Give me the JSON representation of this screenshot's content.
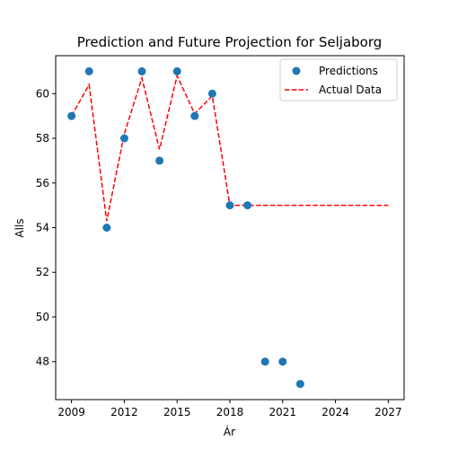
{
  "chart_data": {
    "type": "scatter",
    "title": "Prediction and Future Projection for Seljaborg",
    "xlabel": "Ár",
    "ylabel": "Alls",
    "xlim": [
      2008.1,
      2027.9
    ],
    "ylim": [
      46.3,
      61.7
    ],
    "xticks": [
      2009,
      2012,
      2015,
      2018,
      2021,
      2024,
      2027
    ],
    "yticks": [
      48,
      50,
      52,
      54,
      56,
      58,
      60
    ],
    "grid": false,
    "legend_position": "top-right",
    "series": [
      {
        "name": "Predictions",
        "kind": "scatter",
        "color": "#1f77b4",
        "x": [
          2009,
          2010,
          2011,
          2012,
          2013,
          2014,
          2015,
          2016,
          2017,
          2018,
          2019,
          2020,
          2021,
          2022
        ],
        "y": [
          59,
          61,
          54,
          58,
          61,
          57,
          61,
          59,
          60,
          55,
          55,
          48,
          48,
          47
        ]
      },
      {
        "name": "Actual Data",
        "kind": "line",
        "style": "dashed",
        "color": "#ff0000",
        "x": [
          2009,
          2010,
          2011,
          2012,
          2013,
          2014,
          2015,
          2016,
          2017,
          2018,
          2019,
          2020,
          2021,
          2022,
          2023,
          2024,
          2025,
          2026,
          2027
        ],
        "y": [
          59,
          60.4,
          54.3,
          58.2,
          60.7,
          57.5,
          60.8,
          59.1,
          59.9,
          55,
          55,
          55,
          55,
          55,
          55,
          55,
          55,
          55,
          55
        ]
      }
    ]
  }
}
